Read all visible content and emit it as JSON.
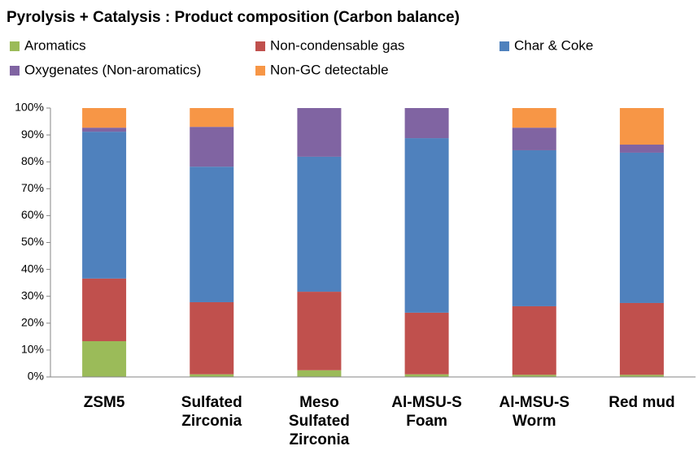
{
  "chart_data": {
    "type": "stacked_bar",
    "title": "Pyrolysis + Catalysis : Product composition (Carbon balance)",
    "categories": [
      "ZSM5",
      "Sulfated Zirconia",
      "Meso Sulfated Zirconia",
      "Al-MSU-S Foam",
      "Al-MSU-S Worm",
      "Red mud"
    ],
    "series": [
      {
        "name": "Aromatics",
        "color": "#9bbb59",
        "values": [
          13.3,
          1,
          2.5,
          1,
          0.8,
          0.8
        ]
      },
      {
        "name": "Non-condensable gas",
        "color": "#c0504d",
        "values": [
          23.3,
          26.8,
          29.2,
          22.9,
          25.5,
          26.7
        ]
      },
      {
        "name": "Char & Coke",
        "color": "#4f81bd",
        "values": [
          54.6,
          50.4,
          50.2,
          64.9,
          58,
          55.9
        ]
      },
      {
        "name": "Oxygenates (Non-aromatics)",
        "color": "#8064a2",
        "values": [
          1.5,
          14.8,
          18.1,
          11.2,
          8.4,
          3
        ]
      },
      {
        "name": "Non-GC detectable",
        "color": "#f79646",
        "values": [
          7.3,
          7,
          0,
          0,
          7.3,
          13.6
        ]
      }
    ],
    "ylim": [
      0,
      100
    ],
    "yticks": [
      {
        "value": 0,
        "label": "0%"
      },
      {
        "value": 10,
        "label": "10%"
      },
      {
        "value": 20,
        "label": "20%"
      },
      {
        "value": 30,
        "label": "30%"
      },
      {
        "value": 40,
        "label": "40%"
      },
      {
        "value": 50,
        "label": "50%"
      },
      {
        "value": 60,
        "label": "60%"
      },
      {
        "value": 70,
        "label": "70%"
      },
      {
        "value": 80,
        "label": "80%"
      },
      {
        "value": 90,
        "label": "90%"
      },
      {
        "value": 100,
        "label": "100%"
      }
    ],
    "legend": "top",
    "grid": false
  }
}
